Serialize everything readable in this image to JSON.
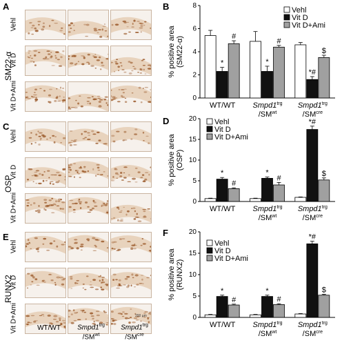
{
  "panels": {
    "A": "A",
    "B": "B",
    "C": "C",
    "D": "D",
    "E": "E",
    "F": "F"
  },
  "micrographs": {
    "markers": [
      "SM22-α",
      "OSP",
      "RUNX2"
    ],
    "row_labels": [
      "Vehl",
      "Vit D",
      "Vit D+Ami"
    ],
    "col_labels": [
      {
        "main": "WT/WT",
        "sub": ""
      },
      {
        "main": "Smpd1",
        "sup": "trg",
        "sub": "/SM",
        "subsup": "wt"
      },
      {
        "main": "Smpd1",
        "sup": "trg",
        "sub": "/SM",
        "subsup": "cre"
      }
    ],
    "scale_bar": "200 µm",
    "colors": {
      "tissue": "#e8d3bd",
      "stain": "#9b5a2b",
      "bg": "#f6f1ec"
    }
  },
  "chart_data": [
    {
      "type": "bar",
      "panel": "B",
      "ylabel": "% positive area\n(SM22-α)",
      "ylim": [
        0,
        8
      ],
      "yticks": [
        0,
        2,
        4,
        6,
        8
      ],
      "categories": [
        "WT/WT",
        "Smpd1trg/SMwt",
        "Smpd1trg/SMcre"
      ],
      "series": [
        {
          "name": "Vehl",
          "values": [
            5.4,
            4.9,
            4.6
          ],
          "errors": [
            0.45,
            0.85,
            0.2
          ],
          "annot": [
            "",
            "",
            ""
          ]
        },
        {
          "name": "Vit D",
          "values": [
            2.3,
            2.3,
            1.6
          ],
          "errors": [
            0.35,
            0.45,
            0.25
          ],
          "annot": [
            "*",
            "*",
            "*#"
          ]
        },
        {
          "name": "Vit D+Ami",
          "values": [
            4.7,
            4.4,
            3.5
          ],
          "errors": [
            0.25,
            0.15,
            0.2
          ],
          "annot": [
            "#",
            "#",
            "$"
          ]
        }
      ]
    },
    {
      "type": "bar",
      "panel": "D",
      "ylabel": "% positive area\n(OSP)",
      "ylim": [
        0,
        20
      ],
      "yticks": [
        0,
        5,
        10,
        15,
        20
      ],
      "categories": [
        "WT/WT",
        "Smpd1trg/SMwt",
        "Smpd1trg/SMcre"
      ],
      "series": [
        {
          "name": "Vehl",
          "values": [
            0.7,
            0.7,
            1.0
          ],
          "errors": [
            0.1,
            0.1,
            0.1
          ],
          "annot": [
            "",
            "",
            ""
          ]
        },
        {
          "name": "Vit D",
          "values": [
            5.4,
            5.6,
            17.4
          ],
          "errors": [
            0.4,
            0.3,
            0.8
          ],
          "annot": [
            "*",
            "*",
            "*#"
          ]
        },
        {
          "name": "Vit D+Ami",
          "values": [
            3.1,
            4.0,
            5.2
          ],
          "errors": [
            0.2,
            0.6,
            0.5
          ],
          "annot": [
            "#",
            "#",
            "$"
          ]
        }
      ]
    },
    {
      "type": "bar",
      "panel": "F",
      "ylabel": "% positive area\n(RUNX2)",
      "ylim": [
        0,
        20
      ],
      "yticks": [
        0,
        5,
        10,
        15,
        20
      ],
      "categories": [
        "WT/WT",
        "Smpd1trg/SMwt",
        "Smpd1trg/SMcre"
      ],
      "series": [
        {
          "name": "Vehl",
          "values": [
            0.6,
            0.6,
            0.8
          ],
          "errors": [
            0.1,
            0.1,
            0.1
          ],
          "annot": [
            "",
            "",
            ""
          ]
        },
        {
          "name": "Vit D",
          "values": [
            4.9,
            4.9,
            17.2
          ],
          "errors": [
            0.3,
            0.3,
            0.6
          ],
          "annot": [
            "*",
            "*",
            "*#"
          ]
        },
        {
          "name": "Vit D+Ami",
          "values": [
            2.9,
            3.0,
            5.2
          ],
          "errors": [
            0.2,
            0.2,
            0.2
          ],
          "annot": [
            "#",
            "#",
            "$"
          ]
        }
      ]
    }
  ],
  "legend_colors": [
    "#ffffff",
    "#111111",
    "#a0a0a0"
  ]
}
